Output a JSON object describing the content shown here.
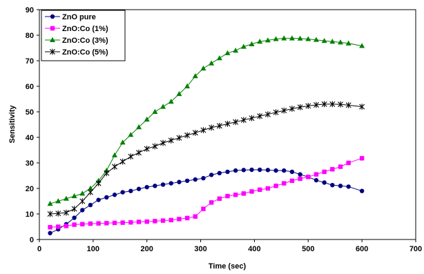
{
  "chart_data": {
    "type": "line",
    "title": "",
    "xlabel": "Time (sec)",
    "ylabel": "Sensitivity",
    "xlim": [
      0,
      700
    ],
    "ylim": [
      0,
      90
    ],
    "xticks": [
      0,
      100,
      200,
      300,
      400,
      500,
      600,
      700
    ],
    "yticks": [
      0,
      10,
      20,
      30,
      40,
      50,
      60,
      70,
      80,
      90
    ],
    "grid": false,
    "legend_position": "top-left",
    "series": [
      {
        "name": "ZnO pure",
        "color": "#000080",
        "marker": "circle",
        "x": [
          20,
          35,
          50,
          65,
          80,
          95,
          110,
          125,
          140,
          155,
          170,
          185,
          200,
          215,
          230,
          245,
          260,
          275,
          290,
          305,
          320,
          335,
          350,
          365,
          380,
          395,
          410,
          425,
          440,
          455,
          470,
          485,
          500,
          515,
          530,
          545,
          560,
          575,
          600
        ],
        "y": [
          2.5,
          4,
          6,
          8.5,
          11.5,
          13.5,
          15.5,
          16.5,
          17.5,
          18.5,
          19,
          19.8,
          20.5,
          21,
          21.5,
          22,
          22.5,
          23,
          23.5,
          24,
          25.3,
          26,
          26.5,
          27,
          27.2,
          27.3,
          27.3,
          27.2,
          27,
          27,
          26.5,
          25.5,
          24.5,
          23.2,
          22.3,
          21.3,
          21,
          20.7,
          19
        ]
      },
      {
        "name": "ZnO:Co (1%)",
        "color": "#FF00FF",
        "marker": "square",
        "x": [
          20,
          35,
          50,
          65,
          80,
          95,
          110,
          125,
          140,
          155,
          170,
          185,
          200,
          215,
          230,
          245,
          260,
          275,
          290,
          305,
          320,
          335,
          350,
          365,
          380,
          395,
          410,
          425,
          440,
          455,
          470,
          485,
          500,
          515,
          530,
          545,
          560,
          575,
          600
        ],
        "y": [
          4.8,
          5,
          5.3,
          5.8,
          6,
          6.2,
          6.3,
          6.4,
          6.5,
          6.6,
          6.7,
          6.9,
          7,
          7.2,
          7.4,
          7.6,
          8,
          8.4,
          9,
          12,
          14.5,
          16,
          17,
          17.5,
          18,
          18.8,
          19.5,
          20,
          21,
          22,
          23,
          23.8,
          24.5,
          25.5,
          26.5,
          27.5,
          28.5,
          30,
          31.8
        ]
      },
      {
        "name": "ZnO:Co (3%)",
        "color": "#008000",
        "marker": "triangle",
        "x": [
          20,
          35,
          50,
          65,
          80,
          95,
          110,
          125,
          140,
          155,
          170,
          185,
          200,
          215,
          230,
          245,
          260,
          275,
          290,
          305,
          320,
          335,
          350,
          365,
          380,
          395,
          410,
          425,
          440,
          455,
          470,
          485,
          500,
          515,
          530,
          545,
          560,
          575,
          600
        ],
        "y": [
          14,
          15,
          16,
          17,
          18,
          20,
          23,
          27,
          33,
          38,
          41,
          44,
          47,
          50,
          52,
          54,
          57,
          60,
          64,
          67,
          69,
          71,
          73,
          74,
          75.5,
          76.5,
          77.5,
          78,
          78.5,
          78.8,
          78.8,
          78.7,
          78.5,
          78.2,
          77.8,
          77.5,
          77.2,
          76.8,
          75.8
        ]
      },
      {
        "name": "ZnO:Co (5%)",
        "color": "#000000",
        "marker": "star",
        "x": [
          20,
          35,
          50,
          65,
          80,
          95,
          110,
          125,
          140,
          155,
          170,
          185,
          200,
          215,
          230,
          245,
          260,
          275,
          290,
          305,
          320,
          335,
          350,
          365,
          380,
          395,
          410,
          425,
          440,
          455,
          470,
          485,
          500,
          515,
          530,
          545,
          560,
          575,
          600
        ],
        "y": [
          10,
          10.2,
          10.5,
          12,
          15,
          18.5,
          22,
          26,
          28.5,
          30.5,
          32.5,
          34,
          35.5,
          36.5,
          37.8,
          38.8,
          39.8,
          40.8,
          41.8,
          42.8,
          43.8,
          44.5,
          45.3,
          46,
          46.8,
          47.5,
          48.3,
          49,
          49.8,
          50.5,
          51.2,
          51.8,
          52.3,
          52.7,
          53,
          53,
          52.9,
          52.6,
          52
        ]
      }
    ]
  }
}
